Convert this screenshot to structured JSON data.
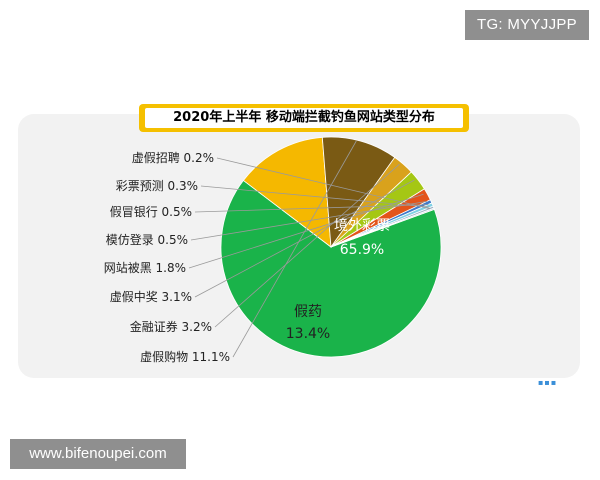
{
  "watermarks": {
    "top": "TG: MYYJJPP",
    "bottom": "www.bifenoupei.com"
  },
  "chart_data": {
    "type": "pie",
    "title": "2020年上半年 移动端拦截钓鱼网站类型分布",
    "slices": [
      {
        "label": "境外彩票",
        "value": 65.9,
        "display": "65.9%",
        "color": "#1ab34a"
      },
      {
        "label": "假药",
        "value": 13.4,
        "display": "13.4%",
        "color": "#f5b800"
      },
      {
        "label": "虚假购物",
        "value": 11.1,
        "display": "11.1%",
        "color": "#7a5a14"
      },
      {
        "label": "金融证券",
        "value": 3.2,
        "display": "3.2%",
        "color": "#d9a21c"
      },
      {
        "label": "虚假中奖",
        "value": 3.1,
        "display": "3.1%",
        "color": "#a5c714"
      },
      {
        "label": "网站被黑",
        "value": 1.8,
        "display": "1.8%",
        "color": "#e3541a"
      },
      {
        "label": "模仿登录",
        "value": 0.5,
        "display": "0.5%",
        "color": "#3f79c9"
      },
      {
        "label": "假冒银行",
        "value": 0.5,
        "display": "0.5%",
        "color": "#80d0e3"
      },
      {
        "label": "彩票预测",
        "value": 0.3,
        "display": "0.3%",
        "color": "#9fb2c6"
      },
      {
        "label": "虚假招聘",
        "value": 0.2,
        "display": "0.2%",
        "color": "#cfd8e0"
      }
    ],
    "start_angle_deg": -20,
    "direction": "clockwise"
  }
}
